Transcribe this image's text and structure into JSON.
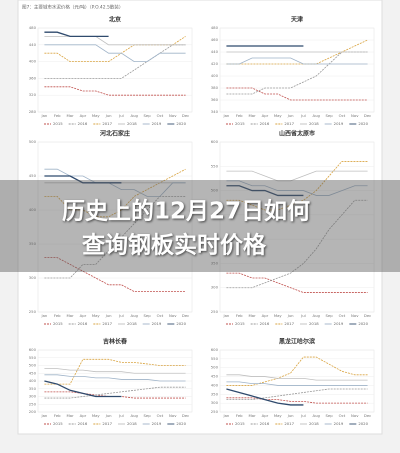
{
  "header": "图7：主要城市水泥价格（元/吨）（P.O.42.5散装）",
  "overlay": {
    "line1": "历史上的12月27日如何",
    "line2": "查询钢板实时价格"
  },
  "chart_data": [
    {
      "type": "line",
      "title": "北京",
      "categories": [
        "Jan",
        "Feb",
        "Mar",
        "Apr",
        "May",
        "Jun",
        "Jul",
        "Aug",
        "Sep",
        "Oct",
        "Nov",
        "Dec"
      ],
      "ylim": [
        280,
        480
      ],
      "yticks": [
        280,
        320,
        360,
        400,
        440,
        480
      ],
      "series": [
        {
          "name": "2015",
          "color": "#c0504d",
          "dash": true,
          "values": [
            340,
            340,
            340,
            330,
            330,
            320,
            320,
            320,
            320,
            320,
            320,
            320
          ]
        },
        {
          "name": "2016",
          "color": "#999999",
          "dash": true,
          "values": [
            360,
            360,
            360,
            360,
            360,
            360,
            360,
            380,
            400,
            420,
            440,
            440
          ]
        },
        {
          "name": "2017",
          "color": "#d9a441",
          "dash": true,
          "values": [
            420,
            420,
            400,
            400,
            400,
            400,
            420,
            440,
            440,
            440,
            440,
            460
          ]
        },
        {
          "name": "2018",
          "color": "#bfbfbf",
          "dash": false,
          "values": [
            460,
            460,
            460,
            460,
            460,
            440,
            440,
            440,
            440,
            440,
            440,
            440
          ]
        },
        {
          "name": "2019",
          "color": "#9fb3c8",
          "dash": false,
          "values": [
            440,
            440,
            440,
            440,
            440,
            420,
            420,
            400,
            400,
            420,
            420,
            420
          ]
        },
        {
          "name": "2020",
          "color": "#2f4a6d",
          "dash": false,
          "values": [
            470,
            470,
            460,
            460,
            460,
            460,
            null,
            null,
            null,
            null,
            null,
            null
          ]
        }
      ]
    },
    {
      "type": "line",
      "title": "天津",
      "categories": [
        "Jan",
        "Feb",
        "Mar",
        "Apr",
        "May",
        "Jun",
        "Jul",
        "Aug",
        "Sep",
        "Oct",
        "Nov",
        "Dec"
      ],
      "ylim": [
        340,
        480
      ],
      "yticks": [
        340,
        360,
        380,
        400,
        420,
        440,
        460,
        480
      ],
      "series": [
        {
          "name": "2015",
          "color": "#c0504d",
          "dash": true,
          "values": [
            380,
            380,
            380,
            370,
            370,
            360,
            360,
            360,
            360,
            360,
            360,
            360
          ]
        },
        {
          "name": "2016",
          "color": "#999999",
          "dash": true,
          "values": [
            370,
            370,
            370,
            380,
            380,
            380,
            390,
            400,
            420,
            440,
            440,
            440
          ]
        },
        {
          "name": "2017",
          "color": "#d9a441",
          "dash": true,
          "values": [
            420,
            420,
            420,
            420,
            420,
            420,
            420,
            420,
            430,
            440,
            450,
            460
          ]
        },
        {
          "name": "2018",
          "color": "#bfbfbf",
          "dash": false,
          "values": [
            440,
            440,
            440,
            440,
            440,
            440,
            440,
            440,
            440,
            440,
            440,
            440
          ]
        },
        {
          "name": "2019",
          "color": "#9fb3c8",
          "dash": false,
          "values": [
            420,
            420,
            430,
            430,
            430,
            430,
            420,
            420,
            420,
            420,
            420,
            420
          ]
        },
        {
          "name": "2020",
          "color": "#2f4a6d",
          "dash": false,
          "values": [
            450,
            450,
            450,
            450,
            450,
            450,
            450,
            null,
            null,
            null,
            null,
            null
          ]
        }
      ]
    },
    {
      "type": "line",
      "title": "河北石家庄",
      "categories": [
        "Jan",
        "Feb",
        "Mar",
        "Apr",
        "May",
        "Jun",
        "Jul",
        "Aug",
        "Sep",
        "Oct",
        "Nov",
        "Dec"
      ],
      "ylim": [
        250,
        500
      ],
      "yticks": [
        250,
        300,
        350,
        400,
        450,
        500
      ],
      "series": [
        {
          "name": "2015",
          "color": "#c0504d",
          "dash": true,
          "values": [
            330,
            330,
            320,
            310,
            300,
            290,
            290,
            280,
            280,
            280,
            280,
            280
          ]
        },
        {
          "name": "2016",
          "color": "#999999",
          "dash": true,
          "values": [
            300,
            300,
            300,
            320,
            320,
            340,
            360,
            380,
            400,
            420,
            420,
            420
          ]
        },
        {
          "name": "2017",
          "color": "#d9a441",
          "dash": true,
          "values": [
            420,
            420,
            400,
            400,
            390,
            390,
            400,
            420,
            430,
            440,
            450,
            460
          ]
        },
        {
          "name": "2018",
          "color": "#bfbfbf",
          "dash": false,
          "values": [
            440,
            440,
            440,
            440,
            440,
            440,
            440,
            440,
            440,
            440,
            440,
            440
          ]
        },
        {
          "name": "2019",
          "color": "#9fb3c8",
          "dash": false,
          "values": [
            460,
            460,
            450,
            450,
            440,
            440,
            430,
            430,
            420,
            420,
            440,
            440
          ]
        },
        {
          "name": "2020",
          "color": "#2f4a6d",
          "dash": false,
          "values": [
            450,
            450,
            450,
            440,
            440,
            440,
            440,
            null,
            null,
            null,
            null,
            null
          ]
        }
      ]
    },
    {
      "type": "line",
      "title": "山西省太原市",
      "categories": [
        "Jan",
        "Feb",
        "Mar",
        "Apr",
        "May",
        "Jun",
        "Jul",
        "Aug",
        "Sep",
        "Oct",
        "Nov",
        "Dec"
      ],
      "ylim": [
        250,
        600
      ],
      "yticks": [
        250,
        300,
        350,
        400,
        450,
        500,
        550,
        600
      ],
      "series": [
        {
          "name": "2015",
          "color": "#c0504d",
          "dash": true,
          "values": [
            330,
            330,
            320,
            320,
            310,
            300,
            290,
            290,
            290,
            290,
            290,
            290
          ]
        },
        {
          "name": "2016",
          "color": "#999999",
          "dash": true,
          "values": [
            300,
            300,
            300,
            310,
            320,
            330,
            350,
            380,
            420,
            450,
            480,
            480
          ]
        },
        {
          "name": "2017",
          "color": "#d9a441",
          "dash": true,
          "values": [
            480,
            480,
            470,
            460,
            460,
            470,
            480,
            500,
            530,
            560,
            560,
            560
          ]
        },
        {
          "name": "2018",
          "color": "#bfbfbf",
          "dash": false,
          "values": [
            540,
            540,
            540,
            530,
            520,
            520,
            530,
            540,
            540,
            540,
            540,
            540
          ]
        },
        {
          "name": "2019",
          "color": "#9fb3c8",
          "dash": false,
          "values": [
            520,
            520,
            510,
            510,
            500,
            500,
            500,
            490,
            490,
            500,
            510,
            510
          ]
        },
        {
          "name": "2020",
          "color": "#2f4a6d",
          "dash": false,
          "values": [
            510,
            510,
            500,
            500,
            490,
            490,
            490,
            null,
            null,
            null,
            null,
            null
          ]
        }
      ]
    },
    {
      "type": "line",
      "title": "吉林长春",
      "categories": [
        "Jan",
        "Feb",
        "Mar",
        "Apr",
        "May",
        "Jun",
        "Jul",
        "Aug",
        "Sep",
        "Oct",
        "Nov",
        "Dec"
      ],
      "ylim": [
        200,
        600
      ],
      "yticks": [
        200,
        250,
        300,
        350,
        400,
        450,
        500,
        550,
        600
      ],
      "series": [
        {
          "name": "2015",
          "color": "#c0504d",
          "dash": true,
          "values": [
            330,
            330,
            330,
            320,
            310,
            300,
            300,
            290,
            290,
            290,
            290,
            290
          ]
        },
        {
          "name": "2016",
          "color": "#999999",
          "dash": true,
          "values": [
            290,
            290,
            290,
            300,
            310,
            320,
            330,
            340,
            350,
            360,
            360,
            360
          ]
        },
        {
          "name": "2017",
          "color": "#d9a441",
          "dash": true,
          "values": [
            380,
            380,
            380,
            540,
            540,
            540,
            520,
            520,
            510,
            500,
            500,
            500
          ]
        },
        {
          "name": "2018",
          "color": "#bfbfbf",
          "dash": false,
          "values": [
            480,
            480,
            470,
            470,
            460,
            460,
            460,
            450,
            450,
            450,
            450,
            450
          ]
        },
        {
          "name": "2019",
          "color": "#9fb3c8",
          "dash": false,
          "values": [
            440,
            440,
            430,
            430,
            420,
            420,
            410,
            410,
            410,
            400,
            400,
            400
          ]
        },
        {
          "name": "2020",
          "color": "#2f4a6d",
          "dash": false,
          "values": [
            400,
            380,
            340,
            320,
            300,
            300,
            300,
            null,
            null,
            null,
            null,
            null
          ]
        }
      ]
    },
    {
      "type": "line",
      "title": "黑龙江哈尔滨",
      "categories": [
        "Jan",
        "Feb",
        "Mar",
        "Apr",
        "May",
        "Jun",
        "Jul",
        "Aug",
        "Sep",
        "Oct",
        "Nov",
        "Dec"
      ],
      "ylim": [
        250,
        600
      ],
      "yticks": [
        250,
        300,
        350,
        400,
        450,
        500,
        550,
        600
      ],
      "series": [
        {
          "name": "2015",
          "color": "#c0504d",
          "dash": true,
          "values": [
            330,
            330,
            330,
            320,
            320,
            310,
            310,
            300,
            300,
            300,
            300,
            300
          ]
        },
        {
          "name": "2016",
          "color": "#999999",
          "dash": true,
          "values": [
            320,
            320,
            320,
            330,
            340,
            350,
            360,
            370,
            380,
            380,
            380,
            380
          ]
        },
        {
          "name": "2017",
          "color": "#d9a441",
          "dash": true,
          "values": [
            400,
            400,
            400,
            420,
            440,
            470,
            560,
            560,
            520,
            480,
            460,
            460
          ]
        },
        {
          "name": "2018",
          "color": "#bfbfbf",
          "dash": false,
          "values": [
            460,
            460,
            450,
            450,
            440,
            440,
            440,
            430,
            430,
            430,
            430,
            430
          ]
        },
        {
          "name": "2019",
          "color": "#9fb3c8",
          "dash": false,
          "values": [
            420,
            420,
            410,
            410,
            400,
            400,
            400,
            400,
            400,
            400,
            400,
            400
          ]
        },
        {
          "name": "2020",
          "color": "#2f4a6d",
          "dash": false,
          "values": [
            380,
            360,
            340,
            320,
            300,
            290,
            290,
            null,
            null,
            null,
            null,
            null
          ]
        }
      ]
    }
  ]
}
